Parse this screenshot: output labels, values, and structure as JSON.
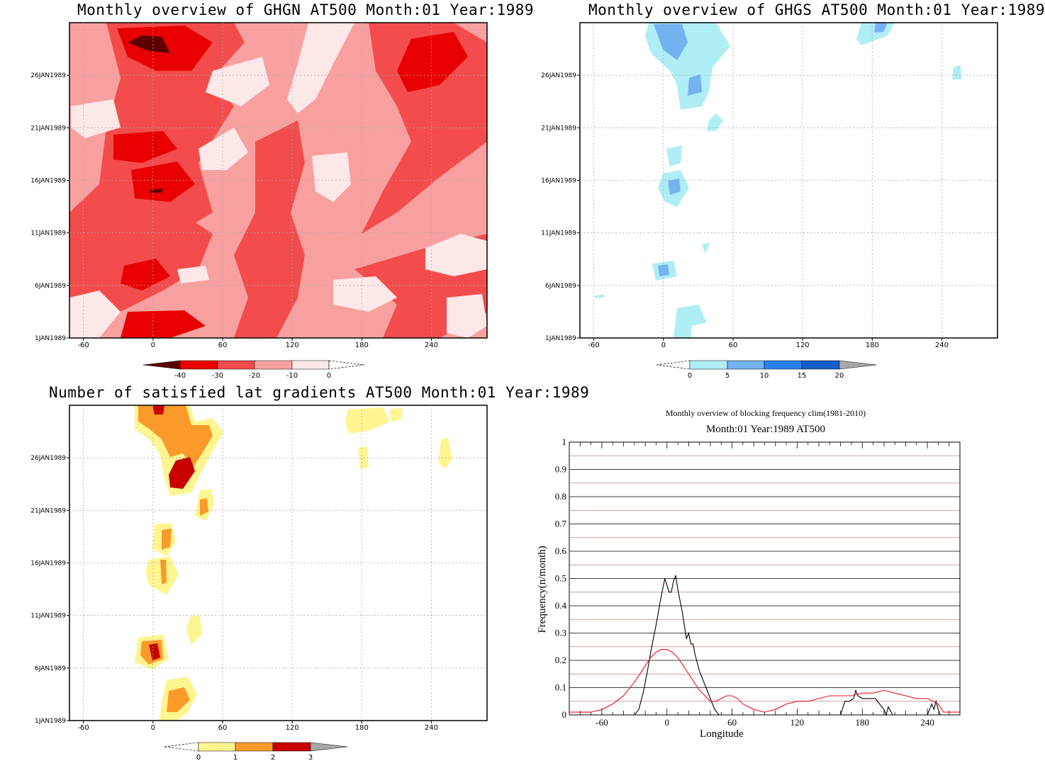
{
  "chart_data": [
    {
      "type": "heatmap",
      "title": "Monthly overview of GHGN AT500 Month:01 Year:1989",
      "x_ticks": [
        "-60",
        "0",
        "60",
        "120",
        "180",
        "240"
      ],
      "y_ticks": [
        "1JAN1989",
        "6JAN1989",
        "11JAN1989",
        "16JAN1989",
        "21JAN1989",
        "26JAN1989"
      ],
      "colorbar": {
        "labels": [
          "-40",
          "-30",
          "-20",
          "-10",
          "0"
        ],
        "colors": [
          "#5c0000",
          "#e80000",
          "#f24c4c",
          "#f8a0a0",
          "#fde8e8"
        ]
      }
    },
    {
      "type": "heatmap",
      "title": "Monthly overview of GHGS AT500 Month:01 Year:1989",
      "x_ticks": [
        "-60",
        "0",
        "60",
        "120",
        "180",
        "240"
      ],
      "y_ticks": [
        "1JAN1989",
        "6JAN1989",
        "11JAN1989",
        "16JAN1989",
        "21JAN1989",
        "26JAN1989"
      ],
      "colorbar": {
        "labels": [
          "0",
          "5",
          "10",
          "15",
          "20"
        ],
        "colors": [
          "#aeeef4",
          "#74b2f2",
          "#2c80ea",
          "#1560c8",
          "#a8a8a8"
        ]
      }
    },
    {
      "type": "heatmap",
      "title": "Number of satisfied lat gradients AT500 Month:01 Year:1989",
      "x_ticks": [
        "-60",
        "0",
        "60",
        "120",
        "180",
        "240"
      ],
      "y_ticks": [
        "1JAN1989",
        "6JAN1989",
        "11JAN1989",
        "16JAN1989",
        "21JAN1989",
        "26JAN1989"
      ],
      "colorbar": {
        "labels": [
          "0",
          "1",
          "2",
          "3"
        ],
        "colors": [
          "#fff590",
          "#f99a2a",
          "#c80000",
          "#a8a8a8"
        ]
      }
    },
    {
      "type": "line",
      "title": "Monthly overview of blocking frequency clim(1981-2010)",
      "subtitle": "Month:01 Year:1989  AT500",
      "xlabel": "Longitude",
      "ylabel": "Frequency(n/month)",
      "xlim": [
        -90,
        270
      ],
      "ylim": [
        0,
        1
      ],
      "x_ticks": [
        "-60",
        "0",
        "60",
        "120",
        "180",
        "240"
      ],
      "y_ticks": [
        "0",
        "0.1",
        "0.2",
        "0.3",
        "0.4",
        "0.5",
        "0.6",
        "0.7",
        "0.8",
        "0.9",
        "1"
      ],
      "series": [
        {
          "color": "#000000",
          "x": [
            -90,
            -30,
            -26,
            -22,
            -18,
            -14,
            -10,
            -6,
            -2,
            2,
            4,
            6,
            8,
            10,
            12,
            14,
            16,
            18,
            20,
            22,
            24,
            26,
            28,
            30,
            32,
            34,
            36,
            38,
            40,
            42,
            44,
            46,
            48,
            50,
            160,
            164,
            168,
            172,
            174,
            176,
            180,
            186,
            192,
            196,
            200,
            202,
            204,
            208,
            240,
            244,
            246,
            248,
            250,
            252,
            270
          ],
          "y": [
            0,
            0,
            0.02,
            0.08,
            0.16,
            0.25,
            0.33,
            0.42,
            0.5,
            0.45,
            0.45,
            0.49,
            0.51,
            0.46,
            0.42,
            0.38,
            0.33,
            0.28,
            0.3,
            0.26,
            0.26,
            0.22,
            0.19,
            0.16,
            0.14,
            0.12,
            0.1,
            0.08,
            0.06,
            0.04,
            0.02,
            0.01,
            0,
            0,
            0,
            0.05,
            0.05,
            0.06,
            0.09,
            0.07,
            0.06,
            0.06,
            0.06,
            0.04,
            0.02,
            0,
            0.03,
            0,
            0,
            0.04,
            0.02,
            0.05,
            0.02,
            0,
            0
          ]
        },
        {
          "color": "#e8141e",
          "x": [
            -90,
            -70,
            -60,
            -50,
            -40,
            -30,
            -20,
            -15,
            -10,
            -5,
            0,
            5,
            10,
            15,
            20,
            25,
            30,
            35,
            40,
            45,
            50,
            55,
            60,
            65,
            70,
            80,
            90,
            100,
            110,
            120,
            130,
            140,
            150,
            160,
            170,
            180,
            190,
            200,
            210,
            220,
            230,
            240,
            250,
            255,
            260,
            270
          ],
          "y": [
            0.01,
            0.01,
            0.02,
            0.04,
            0.07,
            0.12,
            0.18,
            0.21,
            0.23,
            0.24,
            0.24,
            0.23,
            0.21,
            0.18,
            0.15,
            0.12,
            0.09,
            0.07,
            0.05,
            0.05,
            0.06,
            0.07,
            0.07,
            0.06,
            0.04,
            0.02,
            0.01,
            0.02,
            0.04,
            0.05,
            0.05,
            0.06,
            0.07,
            0.07,
            0.07,
            0.08,
            0.08,
            0.09,
            0.08,
            0.07,
            0.06,
            0.06,
            0.04,
            0.01,
            0.01,
            0.01
          ]
        }
      ]
    }
  ]
}
